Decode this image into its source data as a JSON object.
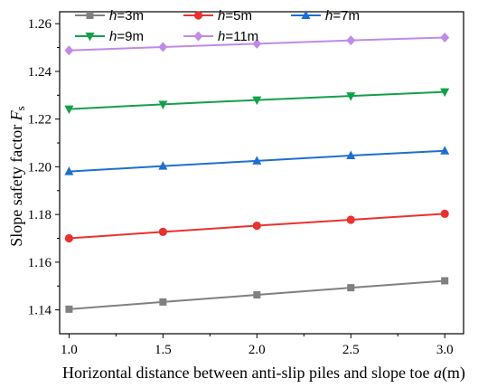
{
  "chart_data": {
    "type": "line",
    "x": [
      1.0,
      1.5,
      2.0,
      2.5,
      3.0
    ],
    "x_tick_labels": [
      "1.0",
      "1.5",
      "2.0",
      "2.5",
      "3.0"
    ],
    "xlim": [
      0.95,
      3.1
    ],
    "ylim": [
      1.13,
      1.265
    ],
    "y_ticks": [
      1.14,
      1.16,
      1.18,
      1.2,
      1.22,
      1.24,
      1.26
    ],
    "y_tick_labels": [
      "1.14",
      "1.16",
      "1.18",
      "1.20",
      "1.22",
      "1.24",
      "1.26"
    ],
    "xlabel": {
      "text": "Horizontal distance between anti-slip piles and slope toe ",
      "var": "a",
      "unit": "(m)"
    },
    "ylabel": {
      "text": "Slope safety factor ",
      "var": "F",
      "sub": "s"
    },
    "grid": false,
    "legend_position": "top",
    "series": [
      {
        "var": "h",
        "name": "=3m",
        "color": "#808080",
        "marker": "square",
        "values": [
          1.1403,
          1.1433,
          1.1463,
          1.1493,
          1.1522
        ]
      },
      {
        "var": "h",
        "name": "=5m",
        "color": "#e8322e",
        "marker": "circle",
        "values": [
          1.17,
          1.1727,
          1.1753,
          1.1778,
          1.1803
        ]
      },
      {
        "var": "h",
        "name": "=7m",
        "color": "#1f6fd1",
        "marker": "triangle-up",
        "values": [
          1.198,
          1.2003,
          1.2025,
          1.2047,
          1.2067
        ]
      },
      {
        "var": "h",
        "name": "=9m",
        "color": "#14a04a",
        "marker": "triangle-down",
        "values": [
          1.2242,
          1.2262,
          1.228,
          1.2297,
          1.2314
        ]
      },
      {
        "var": "h",
        "name": "=11m",
        "color": "#c08ae6",
        "marker": "diamond",
        "values": [
          1.2488,
          1.2502,
          1.2516,
          1.253,
          1.2542
        ]
      }
    ]
  }
}
